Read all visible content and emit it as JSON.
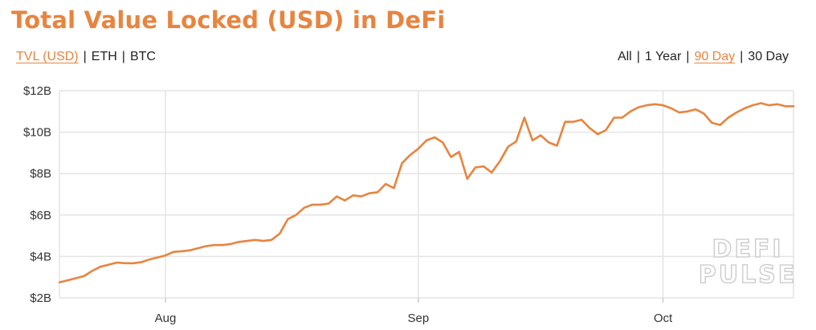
{
  "title": "Total Value Locked (USD) in DeFi",
  "currency_tabs": [
    {
      "label": "TVL (USD)",
      "active": true
    },
    {
      "label": "ETH",
      "active": false
    },
    {
      "label": "BTC",
      "active": false
    }
  ],
  "range_tabs": [
    {
      "label": "All",
      "active": false
    },
    {
      "label": "1 Year",
      "active": false
    },
    {
      "label": "90 Day",
      "active": true
    },
    {
      "label": "30 Day",
      "active": false
    }
  ],
  "separator": "|",
  "watermark": {
    "line1": "DEFI",
    "line2": "PULSE"
  },
  "colors": {
    "accent": "#e8843f",
    "grid": "#e4e4e4",
    "text": "#333333"
  },
  "chart_data": {
    "type": "line",
    "title": "Total Value Locked (USD) in DeFi",
    "xlabel": "",
    "ylabel": "",
    "x_unit": "day",
    "xlim": [
      0,
      90
    ],
    "ylim": [
      2,
      12
    ],
    "y_ticks": [
      {
        "value": 2,
        "label": "$2B"
      },
      {
        "value": 4,
        "label": "$4B"
      },
      {
        "value": 6,
        "label": "$6B"
      },
      {
        "value": 8,
        "label": "$8B"
      },
      {
        "value": 10,
        "label": "$10B"
      },
      {
        "value": 12,
        "label": "$12B"
      }
    ],
    "x_ticks": [
      {
        "value": 13,
        "label": "Aug"
      },
      {
        "value": 44,
        "label": "Sep"
      },
      {
        "value": 74,
        "label": "Oct"
      }
    ],
    "grid": true,
    "series": [
      {
        "name": "",
        "color": "#e8843f",
        "x": [
          0,
          1,
          2,
          3,
          4,
          5,
          6,
          7,
          8,
          9,
          10,
          11,
          12,
          13,
          14,
          15,
          16,
          17,
          18,
          19,
          20,
          21,
          22,
          23,
          24,
          25,
          26,
          27,
          28,
          29,
          30,
          31,
          32,
          33,
          34,
          35,
          36,
          37,
          38,
          39,
          40,
          41,
          42,
          43,
          44,
          45,
          46,
          47,
          48,
          49,
          50,
          51,
          52,
          53,
          54,
          55,
          56,
          57,
          58,
          59,
          60,
          61,
          62,
          63,
          64,
          65,
          66,
          67,
          68,
          69,
          70,
          71,
          72,
          73,
          74,
          75,
          76,
          77,
          78,
          79,
          80,
          81,
          82,
          83,
          84,
          85,
          86,
          87,
          88,
          89,
          90
        ],
        "y": [
          2.75,
          2.85,
          2.95,
          3.05,
          3.3,
          3.5,
          3.6,
          3.7,
          3.68,
          3.67,
          3.72,
          3.85,
          3.95,
          4.05,
          4.22,
          4.25,
          4.3,
          4.4,
          4.5,
          4.55,
          4.55,
          4.6,
          4.7,
          4.75,
          4.8,
          4.75,
          4.8,
          5.1,
          5.8,
          6.0,
          6.35,
          6.5,
          6.5,
          6.55,
          6.9,
          6.7,
          6.95,
          6.9,
          7.05,
          7.1,
          7.5,
          7.3,
          8.5,
          8.9,
          9.2,
          9.6,
          9.75,
          9.5,
          8.8,
          9.05,
          7.75,
          8.3,
          8.35,
          8.05,
          8.6,
          9.3,
          9.55,
          10.7,
          9.6,
          9.85,
          9.5,
          9.35,
          10.5,
          10.5,
          10.6,
          10.2,
          9.9,
          10.1,
          10.7,
          10.7,
          11.0,
          11.2,
          11.3,
          11.35,
          11.3,
          11.15,
          10.95,
          11.0,
          11.1,
          10.9,
          10.45,
          10.35,
          10.7,
          10.95,
          11.15,
          11.3,
          11.4,
          11.3,
          11.35,
          11.25,
          11.25
        ]
      }
    ]
  }
}
